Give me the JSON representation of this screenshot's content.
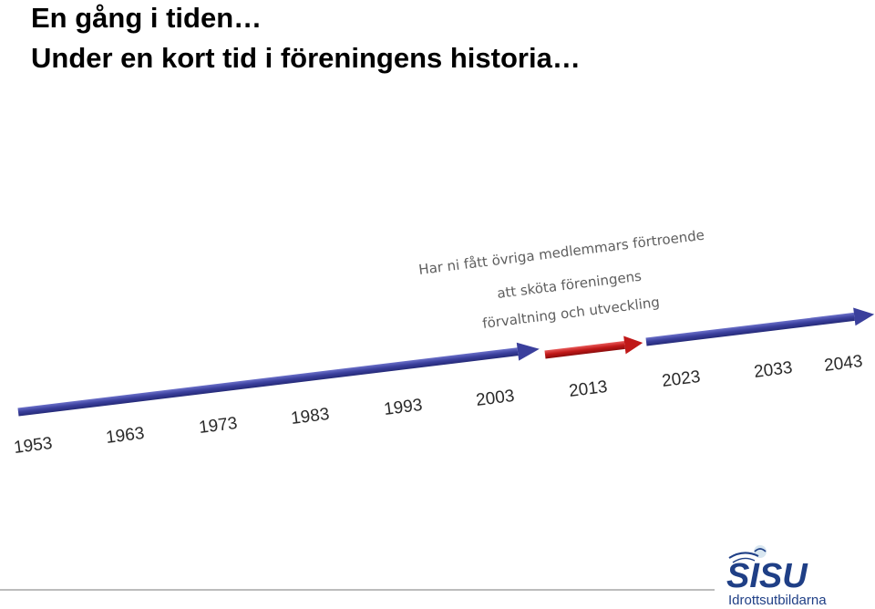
{
  "slide": {
    "title_line1": "En gång i tiden…",
    "title_line2": "Under en kort tid i föreningens historia…"
  },
  "timeline": {
    "years": [
      "1953",
      "1963",
      "1973",
      "1983",
      "1993",
      "2003",
      "2013",
      "2023",
      "2033",
      "2043"
    ],
    "slogan": [
      "Har ni fått övriga medlemmars förtroende",
      "att sköta föreningens",
      "förvaltning och utveckling"
    ],
    "colors": {
      "past_arrow": "#3a3f9c",
      "present_arrow": "#c01818",
      "future_arrow": "#3a3f9c"
    }
  },
  "logo": {
    "name": "SISU",
    "subtitle": "Idrottsutbildarna",
    "color": "#1f3f86"
  }
}
